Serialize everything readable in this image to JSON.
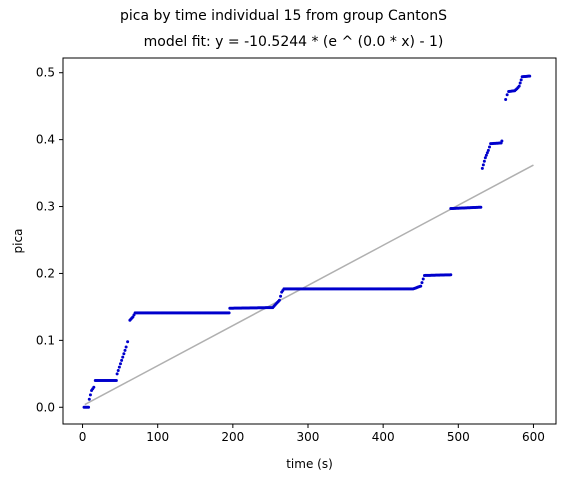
{
  "chart_data": {
    "type": "scatter",
    "title": "pica by time individual 15 from group CantonS",
    "subtitle": "model fit: y = -10.5244 * (e ^ (0.0 * x) - 1)",
    "xlabel": "time (s)",
    "ylabel": "pica",
    "xlim": [
      -26,
      630
    ],
    "ylim": [
      -0.025,
      0.522
    ],
    "xticks": [
      0,
      100,
      200,
      300,
      400,
      500,
      600
    ],
    "xtick_labels": [
      "0",
      "100",
      "200",
      "300",
      "400",
      "500",
      "600"
    ],
    "yticks": [
      0.0,
      0.1,
      0.2,
      0.3,
      0.4,
      0.5
    ],
    "ytick_labels": [
      "0.0",
      "0.1",
      "0.2",
      "0.3",
      "0.4",
      "0.5"
    ],
    "grid": false,
    "colors": {
      "points": "#0000cc",
      "fit": "#b0b0b0"
    },
    "series": [
      {
        "kind": "points",
        "segments": [
          [
            [
              2,
              0.0
            ],
            [
              8,
              0.0
            ],
            [
              9,
              0.012
            ],
            [
              12,
              0.025
            ],
            [
              15,
              0.03
            ],
            [
              17,
              0.04
            ],
            [
              45,
              0.04
            ],
            [
              46,
              0.05
            ],
            [
              58,
              0.09
            ],
            [
              60,
              0.098
            ]
          ],
          [
            [
              63,
              0.13
            ],
            [
              67,
              0.135
            ],
            [
              70,
              0.141
            ],
            [
              195,
              0.141
            ],
            [
              196,
              0.148
            ],
            [
              253,
              0.149
            ],
            [
              262,
              0.16
            ],
            [
              265,
              0.172
            ],
            [
              268,
              0.177
            ],
            [
              440,
              0.177
            ],
            [
              450,
              0.181
            ],
            [
              455,
              0.197
            ],
            [
              490,
              0.198
            ]
          ],
          [
            [
              490,
              0.297
            ],
            [
              530,
              0.299
            ],
            [
              532,
              0.357
            ],
            [
              536,
              0.373
            ],
            [
              540,
              0.384
            ],
            [
              543,
              0.394
            ],
            [
              557,
              0.395
            ],
            [
              558,
              0.398
            ]
          ],
          [
            [
              563,
              0.46
            ],
            [
              565,
              0.467
            ],
            [
              567,
              0.472
            ],
            [
              575,
              0.473
            ],
            [
              578,
              0.476
            ],
            [
              581,
              0.48
            ],
            [
              585,
              0.494
            ],
            [
              595,
              0.495
            ]
          ]
        ]
      },
      {
        "kind": "fit-line",
        "x": [
          3,
          600
        ],
        "y": [
          0.004,
          0.362
        ]
      }
    ]
  }
}
